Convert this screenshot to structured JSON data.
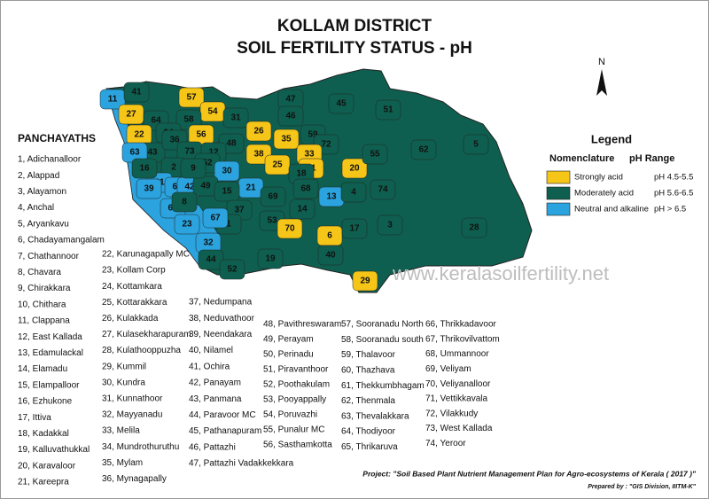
{
  "title": [
    "KOLLAM DISTRICT",
    "SOIL FERTILITY STATUS -  pH"
  ],
  "north": "N",
  "panchayaths_heading": "PANCHAYATHS",
  "panchayaths": [
    "1, Adichanalloor",
    "2, Alappad",
    "3, Alayamon",
    "4, Anchal",
    "5, Aryankavu",
    "6, Chadayamangalam",
    "7, Chathannoor",
    "8, Chavara",
    "9, Chirakkara",
    "10, Chithara",
    "11, Clappana",
    "12, East Kallada",
    "13, Edamulackal",
    "14, Elamadu",
    "15, Elampalloor",
    "16, Ezhukone",
    "17, Ittiva",
    "18, Kadakkal",
    "19, Kalluvathukkal",
    "20, Karavaloor",
    "21, Kareepra",
    "22, Karunagapally MC",
    "23, Kollam Corp",
    "24, Kottamkara",
    "25, Kottarakkara",
    "26, Kulakkada",
    "27, Kulasekharapuram",
    "28, Kulathooppuzha",
    "29, Kummil",
    "30, Kundra",
    "31, Kunnathoor",
    "32, Mayyanadu",
    "33, Melila",
    "34, Mundrothuruthu",
    "35, Mylam",
    "36, Mynagapally",
    "37, Nedumpana",
    "38, Neduvathoor",
    "39, Neendakara",
    "40, Nilamel",
    "41, Ochira",
    "42, Panayam",
    "43, Panmana",
    "44, Paravoor MC",
    "45, Pathanapuram",
    "46, Pattazhi",
    "47, Pattazhi Vadakkekkara",
    "48, Pavithreswaram",
    "49, Perayam",
    "50, Perinadu",
    "51, Piravanthoor",
    "52, Poothakulam",
    "53, Pooyappally",
    "54, Poruvazhi",
    "55, Punalur MC",
    "56, Sasthamkotta",
    "57, Sooranadu North",
    "58, Sooranadu south",
    "59, Thalavoor",
    "60, Thazhava",
    "61, Thekkumbhagam",
    "62, Thenmala",
    "63, Thevalakkara",
    "64, Thodiyoor",
    "65, Thrikaruva",
    "66, Thrikkadavoor",
    "67, Thrikovilvattom",
    "68, Ummannoor",
    "69, Veliyam",
    "70, Veliyanalloor",
    "71, Vettikkavala",
    "72, Vilakkudy",
    "73, West Kallada",
    "74, Yeroor"
  ],
  "legend": {
    "title": "Legend",
    "column_1": "Nomenclature",
    "column_2": "pH Range",
    "items": [
      {
        "name": "Strongly acid",
        "range": "pH 4.5-5.5",
        "color": "#f5c518"
      },
      {
        "name": "Moderately acid",
        "range": "pH 5.6-6.5",
        "color": "#0e5f4f"
      },
      {
        "name": "Neutral and alkaline",
        "range": "pH > 6.5",
        "color": "#2aa3de"
      }
    ]
  },
  "regions": [
    {
      "label": "11",
      "color": "#2aa3de"
    },
    {
      "label": "41",
      "color": "#0e5f4f"
    },
    {
      "label": "57",
      "color": "#f5c518"
    },
    {
      "label": "54",
      "color": "#f5c518"
    },
    {
      "label": "47",
      "color": "#0e5f4f"
    },
    {
      "label": "45",
      "color": "#0e5f4f"
    },
    {
      "label": "51",
      "color": "#0e5f4f"
    },
    {
      "label": "27",
      "color": "#f5c518"
    },
    {
      "label": "64",
      "color": "#0e5f4f"
    },
    {
      "label": "58",
      "color": "#0e5f4f"
    },
    {
      "label": "31",
      "color": "#0e5f4f"
    },
    {
      "label": "46",
      "color": "#0e5f4f"
    },
    {
      "label": "22",
      "color": "#f5c518"
    },
    {
      "label": "24",
      "color": "#0e5f4f"
    },
    {
      "label": "56",
      "color": "#f5c518"
    },
    {
      "label": "26",
      "color": "#f5c518"
    },
    {
      "label": "48",
      "color": "#0e5f4f"
    },
    {
      "label": "59",
      "color": "#0e5f4f"
    },
    {
      "label": "62",
      "color": "#0e5f4f"
    },
    {
      "label": "5",
      "color": "#0e5f4f"
    },
    {
      "label": "43",
      "color": "#0e5f4f"
    },
    {
      "label": "63",
      "color": "#2aa3de"
    },
    {
      "label": "36",
      "color": "#0e5f4f"
    },
    {
      "label": "73",
      "color": "#0e5f4f"
    },
    {
      "label": "12",
      "color": "#0e5f4f"
    },
    {
      "label": "35",
      "color": "#f5c518"
    },
    {
      "label": "72",
      "color": "#0e5f4f"
    },
    {
      "label": "2",
      "color": "#0e5f4f"
    },
    {
      "label": "52",
      "color": "#0e5f4f"
    },
    {
      "label": "30",
      "color": "#2aa3de"
    },
    {
      "label": "38",
      "color": "#f5c518"
    },
    {
      "label": "25",
      "color": "#f5c518"
    },
    {
      "label": "33",
      "color": "#f5c518"
    },
    {
      "label": "71",
      "color": "#f5c518"
    },
    {
      "label": "20",
      "color": "#f5c518"
    },
    {
      "label": "55",
      "color": "#0e5f4f"
    },
    {
      "label": "61",
      "color": "#2aa3de"
    },
    {
      "label": "65",
      "color": "#2aa3de"
    },
    {
      "label": "39",
      "color": "#2aa3de"
    },
    {
      "label": "42",
      "color": "#2aa3de"
    },
    {
      "label": "49",
      "color": "#0e5f4f"
    },
    {
      "label": "18",
      "color": "#0e5f4f"
    },
    {
      "label": "21",
      "color": "#2aa3de"
    },
    {
      "label": "15",
      "color": "#0e5f4f"
    },
    {
      "label": "69",
      "color": "#0e5f4f"
    },
    {
      "label": "68",
      "color": "#0e5f4f"
    },
    {
      "label": "13",
      "color": "#2aa3de"
    },
    {
      "label": "4",
      "color": "#0e5f4f"
    },
    {
      "label": "74",
      "color": "#0e5f4f"
    },
    {
      "label": "66",
      "color": "#2aa3de"
    },
    {
      "label": "23",
      "color": "#2aa3de"
    },
    {
      "label": "37",
      "color": "#0e5f4f"
    },
    {
      "label": "14",
      "color": "#0e5f4f"
    },
    {
      "label": "1",
      "color": "#0e5f4f"
    },
    {
      "label": "67",
      "color": "#2aa3de"
    },
    {
      "label": "53",
      "color": "#0e5f4f"
    },
    {
      "label": "70",
      "color": "#f5c518"
    },
    {
      "label": "6",
      "color": "#f5c518"
    },
    {
      "label": "17",
      "color": "#0e5f4f"
    },
    {
      "label": "3",
      "color": "#0e5f4f"
    },
    {
      "label": "28",
      "color": "#0e5f4f"
    },
    {
      "label": "32",
      "color": "#2aa3de"
    },
    {
      "label": "44",
      "color": "#0e5f4f"
    },
    {
      "label": "52",
      "color": "#0e5f4f"
    },
    {
      "label": "19",
      "color": "#0e5f4f"
    },
    {
      "label": "40",
      "color": "#0e5f4f"
    },
    {
      "label": "29",
      "color": "#f5c518"
    },
    {
      "label": "16",
      "color": "#0e5f4f"
    },
    {
      "label": "9",
      "color": "#0e5f4f"
    },
    {
      "label": "8",
      "color": "#0e5f4f"
    }
  ],
  "watermark": "www.keralasoilfertility.net",
  "project": "Project: \"Soil Based Plant Nutrient Management Plan for Agro-ecosystems of Kerala ( 2017 )\"",
  "prepared_by": "Prepared by : \"GIS Division, IIITM-K\""
}
